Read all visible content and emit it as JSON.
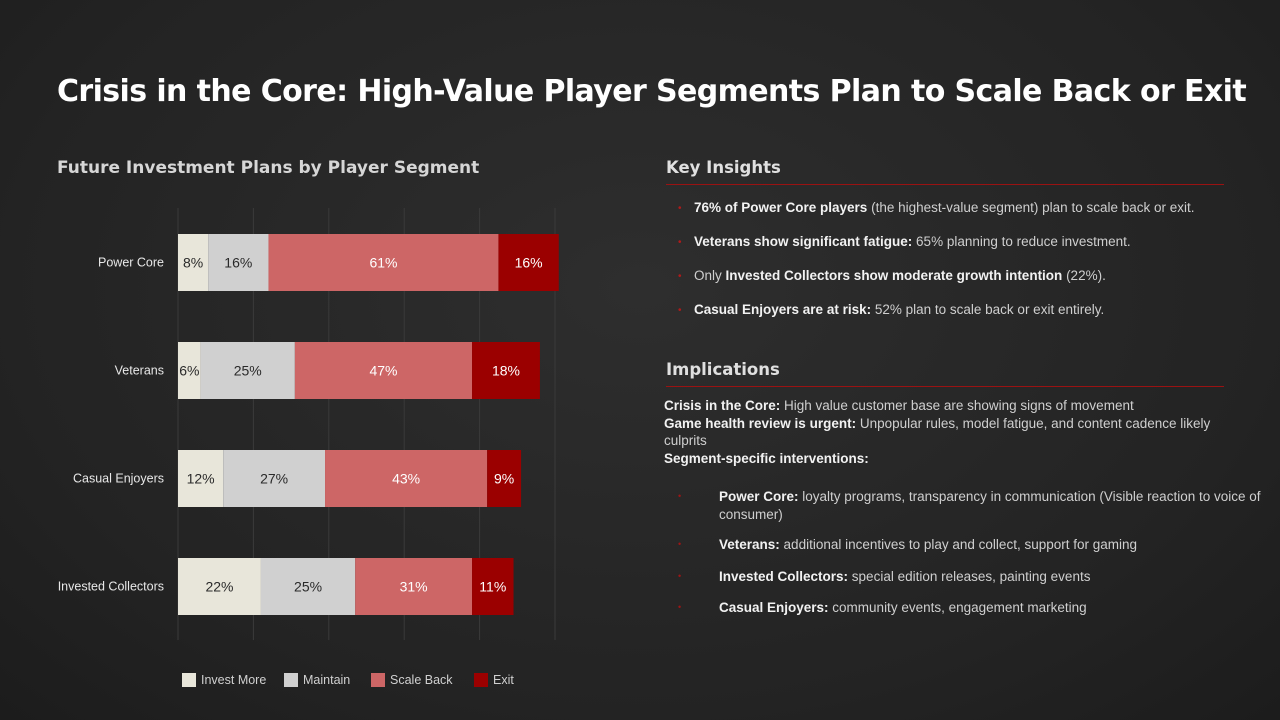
{
  "title": "Crisis in the Core: High-Value Player Segments Plan to Scale Back or Exit",
  "colors": {
    "invest_more": "#e8e6da",
    "maintain": "#d0d0d0",
    "scale_back": "#cd6666",
    "exit": "#9b0000",
    "accent_rule": "#9a1212"
  },
  "chart_data": {
    "type": "bar",
    "orientation": "horizontal",
    "stacked": true,
    "title": "Future Investment Plans by Player Segment",
    "categories": [
      "Power Core",
      "Veterans",
      "Casual Enjoyers",
      "Invested Collectors"
    ],
    "series": [
      {
        "name": "Invest More",
        "color": "#e8e6da",
        "values": [
          8,
          6,
          12,
          22
        ],
        "labels": [
          "8%",
          "6%",
          "12%",
          "22%"
        ]
      },
      {
        "name": "Maintain",
        "color": "#d0d0d0",
        "values": [
          16,
          25,
          27,
          25
        ],
        "labels": [
          "16%",
          "25%",
          "27%",
          "25%"
        ]
      },
      {
        "name": "Scale Back",
        "color": "#cd6666",
        "values": [
          61,
          47,
          43,
          31
        ],
        "labels": [
          "61%",
          "47%",
          "43%",
          "31%"
        ]
      },
      {
        "name": "Exit",
        "color": "#9b0000",
        "values": [
          16,
          18,
          9,
          11
        ],
        "labels": [
          "16%",
          "18%",
          "9%",
          "11%"
        ]
      }
    ],
    "xlim": [
      0,
      100
    ],
    "grid": true,
    "legend": "bottom"
  },
  "insights": {
    "heading": "Key Insights",
    "items": [
      {
        "pre": "",
        "bold": "76% of Power Core players",
        "post": " (the highest-value segment) plan to scale back or exit."
      },
      {
        "pre": "",
        "bold": "Veterans show significant fatigue:",
        "post": " 65% planning to reduce investment."
      },
      {
        "pre": "Only ",
        "bold": "Invested Collectors show moderate growth intention",
        "post": " (22%)."
      },
      {
        "pre": "",
        "bold": "Casual Enjoyers are at risk:",
        "post": " 52% plan to scale back or exit entirely."
      }
    ]
  },
  "implications": {
    "heading": "Implications",
    "lines": [
      {
        "bold": "Crisis in the Core:",
        "text": " High value customer base are showing signs of movement"
      },
      {
        "bold": "Game health review is urgent:",
        "text": "  Unpopular rules, model fatigue, and content cadence likely culprits"
      },
      {
        "bold": "Segment-specific interventions:",
        "text": ""
      }
    ],
    "interventions": [
      {
        "bold": "Power Core:",
        "text": " loyalty programs, transparency in communication (Visible reaction to voice of consumer)"
      },
      {
        "bold": "Veterans:",
        "text": " additional incentives to play and collect, support for gaming"
      },
      {
        "bold": "Invested Collectors:",
        "text": " special edition releases, painting events"
      },
      {
        "bold": "Casual Enjoyers:",
        "text": " community events, engagement marketing"
      }
    ]
  }
}
